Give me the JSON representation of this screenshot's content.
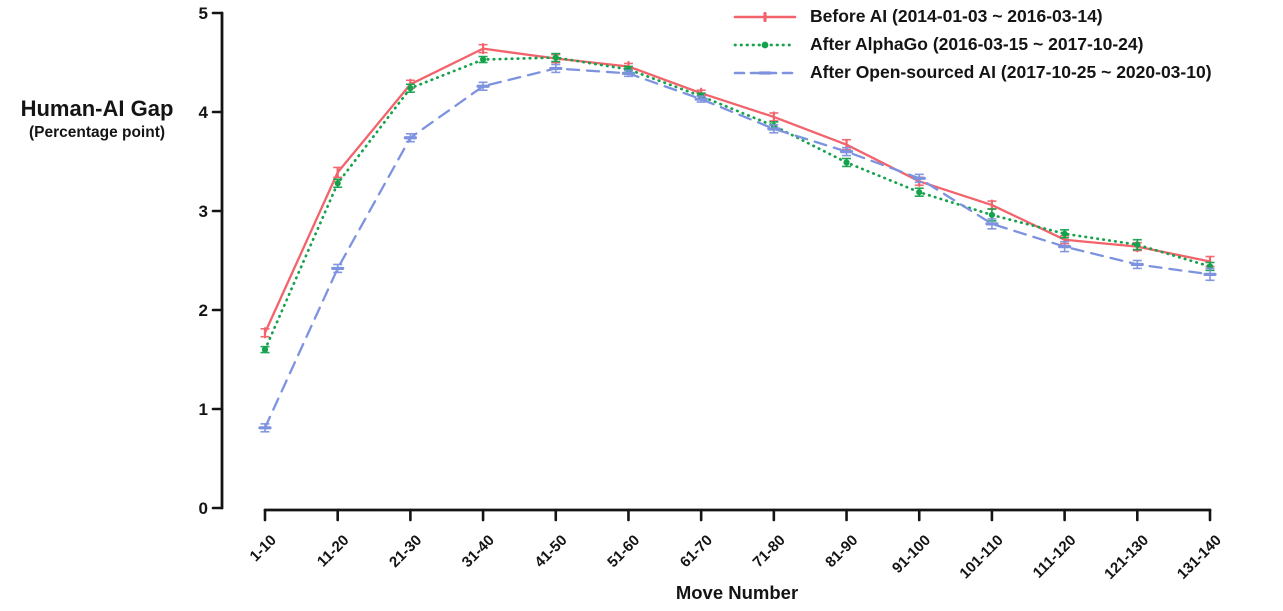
{
  "chart_data": {
    "type": "line",
    "title": "",
    "xlabel": "Move Number",
    "ylabel": "Human-AI Gap (Percentage point)",
    "ylabel_main": "Human-AI Gap",
    "ylabel_sub": "(Percentage point)",
    "categories": [
      "1-10",
      "11-20",
      "21-30",
      "31-40",
      "41-50",
      "51-60",
      "61-70",
      "71-80",
      "81-90",
      "91-100",
      "101-110",
      "111-120",
      "121-130",
      "131-140"
    ],
    "y_ticks": [
      0,
      1,
      2,
      3,
      4,
      5
    ],
    "ylim": [
      0,
      5
    ],
    "grid": false,
    "legend_position": "top-right",
    "error_bars": true,
    "axis_color": "#141414",
    "series": [
      {
        "name": "Before AI (2014-01-03 ~ 2016-03-14)",
        "color": "#f2636b",
        "line_style": "solid",
        "marker": "tick",
        "values": [
          1.77,
          3.39,
          4.28,
          4.64,
          4.54,
          4.46,
          4.19,
          3.95,
          3.67,
          3.3,
          3.06,
          2.71,
          2.64,
          2.49
        ],
        "errors": [
          0.04,
          0.05,
          0.04,
          0.04,
          0.04,
          0.03,
          0.03,
          0.04,
          0.05,
          0.04,
          0.04,
          0.04,
          0.04,
          0.05
        ]
      },
      {
        "name": "After AlphaGo (2016-03-15 ~ 2017-10-24)",
        "color": "#15a24c",
        "line_style": "dotted",
        "marker": "circle",
        "values": [
          1.6,
          3.28,
          4.24,
          4.53,
          4.55,
          4.43,
          4.16,
          3.86,
          3.49,
          3.19,
          2.96,
          2.77,
          2.66,
          2.44
        ],
        "errors": [
          0.03,
          0.04,
          0.04,
          0.03,
          0.04,
          0.03,
          0.03,
          0.04,
          0.04,
          0.04,
          0.06,
          0.04,
          0.05,
          0.04
        ]
      },
      {
        "name": "After Open-sourced AI (2017-10-25 ~ 2020-03-10)",
        "color": "#7e93e0",
        "line_style": "dashed",
        "marker": "dash",
        "values": [
          0.81,
          2.42,
          3.74,
          4.26,
          4.44,
          4.39,
          4.13,
          3.83,
          3.6,
          3.33,
          2.87,
          2.64,
          2.46,
          2.36
        ],
        "errors": [
          0.04,
          0.04,
          0.04,
          0.04,
          0.04,
          0.03,
          0.03,
          0.04,
          0.04,
          0.04,
          0.05,
          0.05,
          0.04,
          0.06
        ]
      }
    ]
  }
}
